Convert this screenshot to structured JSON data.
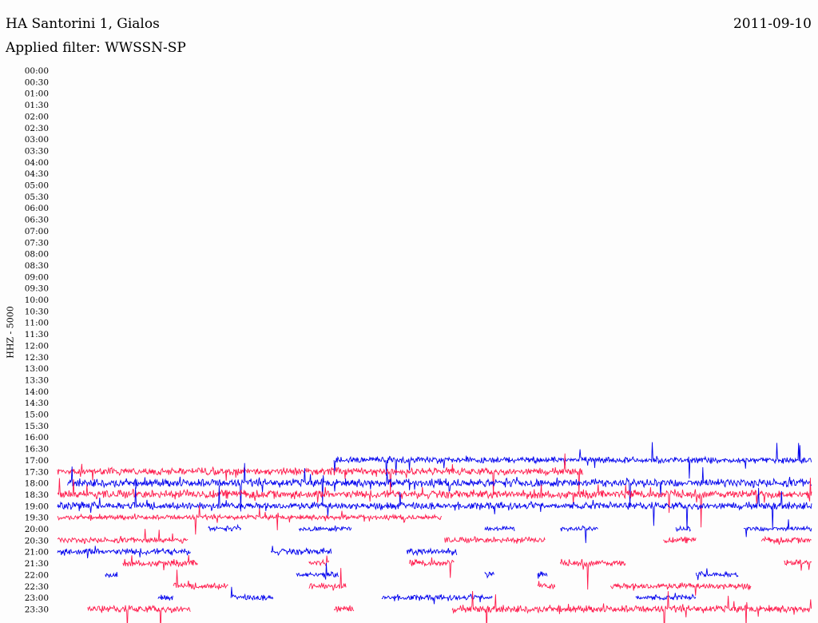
{
  "header": {
    "station": "HA Santorini 1, Gialos",
    "date": "2011-09-10",
    "filter": "Applied filter: WWSSN-SP"
  },
  "chart_data": {
    "type": "line",
    "title": "HA Santorini 1, Gialos",
    "ylabel": "HHZ - 5000",
    "time_labels": [
      "00:00",
      "00:30",
      "01:00",
      "01:30",
      "02:00",
      "02:30",
      "03:00",
      "03:30",
      "04:00",
      "04:30",
      "05:00",
      "05:30",
      "06:00",
      "06:30",
      "07:00",
      "07:30",
      "08:00",
      "08:30",
      "09:00",
      "09:30",
      "10:00",
      "10:30",
      "11:00",
      "11:30",
      "12:00",
      "12:30",
      "13:00",
      "13:30",
      "14:00",
      "14:30",
      "15:00",
      "15:30",
      "16:00",
      "16:30",
      "17:00",
      "17:30",
      "18:00",
      "18:30",
      "19:00",
      "19:30",
      "20:00",
      "20:30",
      "21:00",
      "21:30",
      "22:00",
      "22:30",
      "23:00",
      "23:30"
    ],
    "x_range_minutes": [
      0,
      30
    ],
    "colors": {
      "blue": "#0000ee",
      "red": "#ff1a4b"
    },
    "traces": [
      {
        "row": "17:00",
        "color": "blue",
        "segments": [
          [
            11.0,
            30.0
          ]
        ],
        "amp": 0.8
      },
      {
        "row": "17:30",
        "color": "red",
        "segments": [
          [
            0.0,
            20.9
          ]
        ],
        "amp": 0.9
      },
      {
        "row": "18:00",
        "color": "blue",
        "segments": [
          [
            0.4,
            30.0
          ]
        ],
        "amp": 1.0
      },
      {
        "row": "18:30",
        "color": "red",
        "segments": [
          [
            0.0,
            30.0
          ]
        ],
        "amp": 1.0
      },
      {
        "row": "19:00",
        "color": "blue",
        "segments": [
          [
            0.0,
            30.0
          ]
        ],
        "amp": 0.9
      },
      {
        "row": "19:30",
        "color": "red",
        "segments": [
          [
            0.0,
            15.3
          ]
        ],
        "amp": 0.6
      },
      {
        "row": "20:00",
        "color": "blue",
        "segments": [
          [
            6.0,
            7.3
          ],
          [
            9.6,
            11.7
          ],
          [
            17.0,
            18.2
          ],
          [
            20.0,
            21.5
          ],
          [
            24.6,
            25.2
          ],
          [
            27.3,
            30.0
          ]
        ],
        "amp": 0.6
      },
      {
        "row": "20:30",
        "color": "red",
        "segments": [
          [
            0.0,
            5.2
          ],
          [
            15.4,
            19.4
          ],
          [
            24.1,
            25.4
          ],
          [
            28.0,
            30.0
          ]
        ],
        "amp": 0.7
      },
      {
        "row": "21:00",
        "color": "blue",
        "segments": [
          [
            0.0,
            5.3
          ],
          [
            8.5,
            10.9
          ],
          [
            13.9,
            15.9
          ]
        ],
        "amp": 0.8
      },
      {
        "row": "21:30",
        "color": "red",
        "segments": [
          [
            2.6,
            5.6
          ],
          [
            10.0,
            10.8
          ],
          [
            14.0,
            15.8
          ],
          [
            20.0,
            22.6
          ],
          [
            28.9,
            30.0
          ]
        ],
        "amp": 0.8
      },
      {
        "row": "22:00",
        "color": "blue",
        "segments": [
          [
            1.9,
            2.4
          ],
          [
            9.5,
            11.2
          ],
          [
            17.0,
            17.4
          ],
          [
            19.1,
            19.5
          ],
          [
            25.4,
            27.1
          ]
        ],
        "amp": 0.7
      },
      {
        "row": "22:30",
        "color": "red",
        "segments": [
          [
            4.6,
            6.8
          ],
          [
            10.0,
            11.5
          ],
          [
            19.1,
            19.8
          ],
          [
            22.0,
            27.6
          ]
        ],
        "amp": 0.8
      },
      {
        "row": "23:00",
        "color": "blue",
        "segments": [
          [
            4.0,
            4.6
          ],
          [
            6.9,
            8.6
          ],
          [
            12.9,
            17.3
          ],
          [
            23.0,
            25.4
          ]
        ],
        "amp": 0.7
      },
      {
        "row": "23:30",
        "color": "red",
        "segments": [
          [
            1.2,
            5.3
          ],
          [
            11.0,
            11.8
          ],
          [
            15.7,
            30.0
          ]
        ],
        "amp": 0.9
      }
    ]
  }
}
